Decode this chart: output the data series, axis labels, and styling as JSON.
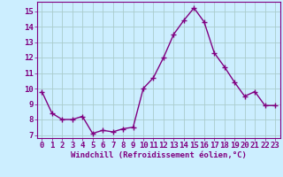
{
  "x": [
    0,
    1,
    2,
    3,
    4,
    5,
    6,
    7,
    8,
    9,
    10,
    11,
    12,
    13,
    14,
    15,
    16,
    17,
    18,
    19,
    20,
    21,
    22,
    23
  ],
  "y": [
    9.8,
    8.4,
    8.0,
    8.0,
    8.2,
    7.1,
    7.3,
    7.2,
    7.4,
    7.5,
    10.0,
    10.7,
    12.0,
    13.5,
    14.4,
    15.2,
    14.3,
    12.3,
    11.4,
    10.4,
    9.5,
    9.8,
    8.9,
    8.9
  ],
  "line_color": "#800080",
  "marker": "+",
  "marker_size": 4,
  "bg_color": "#cceeff",
  "grid_color": "#aacccc",
  "xlabel": "Windchill (Refroidissement éolien,°C)",
  "xlim_min": -0.5,
  "xlim_max": 23.5,
  "ylim_min": 6.8,
  "ylim_max": 15.6,
  "yticks": [
    7,
    8,
    9,
    10,
    11,
    12,
    13,
    14,
    15
  ],
  "xticks": [
    0,
    1,
    2,
    3,
    4,
    5,
    6,
    7,
    8,
    9,
    10,
    11,
    12,
    13,
    14,
    15,
    16,
    17,
    18,
    19,
    20,
    21,
    22,
    23
  ],
  "xlabel_fontsize": 6.5,
  "tick_fontsize": 6.5,
  "tick_color": "#800080",
  "axis_color": "#800080",
  "linewidth": 1.0
}
